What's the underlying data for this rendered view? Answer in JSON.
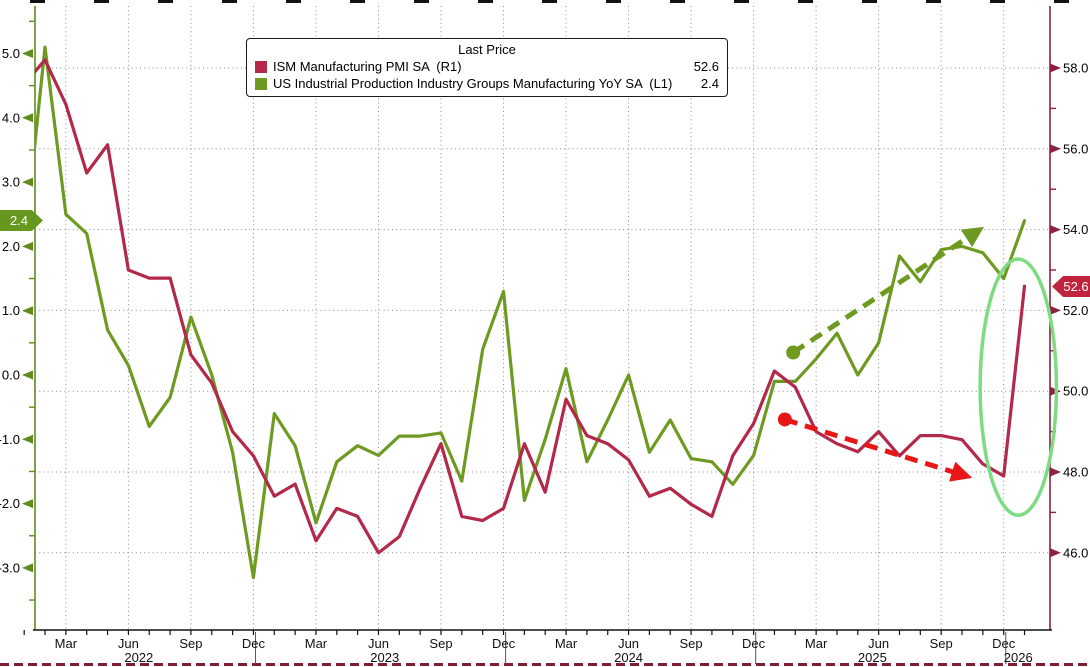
{
  "legend": {
    "title": "Last Price",
    "series": [
      {
        "label": "ISM Manufacturing PMI SA  (R1)",
        "value": "52.6",
        "color": "#b2294a"
      },
      {
        "label": "US Industrial Production Industry Groups Manufacturing YoY SA  (L1)",
        "value": "2.4",
        "color": "#6f9a21"
      }
    ]
  },
  "badges": {
    "left": {
      "text": "2.4",
      "color": "#66981f"
    },
    "right": {
      "text": "52.6",
      "color": "#c0233c"
    }
  },
  "chart_data": {
    "type": "line",
    "x_start": "2022-01",
    "x_end": "2026-01",
    "series": [
      {
        "name": "ISM Manufacturing PMI SA",
        "axis": "right",
        "color": "#b2294a",
        "last_price": 52.6,
        "values": [
          57.6,
          58.2,
          57.1,
          55.4,
          56.1,
          53.0,
          52.8,
          52.8,
          50.9,
          50.2,
          49.0,
          48.4,
          47.4,
          47.7,
          46.3,
          47.1,
          46.9,
          46.0,
          46.4,
          47.6,
          48.7,
          46.9,
          46.8,
          47.1,
          48.7,
          47.5,
          49.8,
          48.9,
          48.7,
          48.3,
          47.4,
          47.6,
          47.2,
          46.9,
          48.4,
          49.2,
          50.5,
          50.1,
          49.0,
          48.7,
          48.5,
          49.0,
          48.4,
          48.9,
          48.9,
          48.8,
          48.2,
          47.9,
          52.6
        ]
      },
      {
        "name": "US Industrial Production Industry Groups Manufacturing YoY SA",
        "axis": "left",
        "color": "#6f9a21",
        "last_price": 2.4,
        "values": [
          2.0,
          5.1,
          2.5,
          2.2,
          0.7,
          0.15,
          -0.8,
          -0.35,
          0.9,
          0.0,
          -1.2,
          -3.15,
          -0.6,
          -1.1,
          -2.3,
          -1.35,
          -1.1,
          -1.25,
          -0.95,
          -0.95,
          -0.9,
          -1.65,
          0.4,
          1.3,
          -1.95,
          -1.0,
          0.1,
          -1.35,
          -0.7,
          0.0,
          -1.2,
          -0.7,
          -1.3,
          -1.35,
          -1.7,
          -1.25,
          -0.1,
          -0.1,
          0.25,
          0.65,
          0.0,
          0.5,
          1.85,
          1.45,
          1.95,
          2.0,
          1.9,
          1.5,
          2.4
        ]
      }
    ],
    "left_axis": {
      "ticks": [
        "5.0",
        "4.0",
        "3.0",
        "2.0",
        "1.0",
        "0.0",
        "-1.0",
        "-2.0",
        "-3.0"
      ],
      "color": "#5f8c1d"
    },
    "right_axis": {
      "ticks": [
        "58.0",
        "56.0",
        "54.0",
        "52.0",
        "50.0",
        "48.0",
        "46.0"
      ],
      "color": "#8e2040"
    },
    "x_axis": {
      "quarter_ticks": [
        {
          "label": "Mar",
          "m": 2
        },
        {
          "label": "Jun",
          "m": 5
        },
        {
          "label": "Sep",
          "m": 8
        },
        {
          "label": "Dec",
          "m": 11
        },
        {
          "label": "Mar",
          "m": 14
        },
        {
          "label": "Jun",
          "m": 17
        },
        {
          "label": "Sep",
          "m": 20
        },
        {
          "label": "Dec",
          "m": 23
        },
        {
          "label": "Mar",
          "m": 26
        },
        {
          "label": "Jun",
          "m": 29
        },
        {
          "label": "Sep",
          "m": 32
        },
        {
          "label": "Dec",
          "m": 35
        },
        {
          "label": "Mar",
          "m": 38
        },
        {
          "label": "Jun",
          "m": 41
        },
        {
          "label": "Sep",
          "m": 44
        },
        {
          "label": "Dec",
          "m": 47
        }
      ],
      "year_labels": [
        {
          "label": "2022",
          "m": 5.5
        },
        {
          "label": "2023",
          "m": 17.3
        },
        {
          "label": "2024",
          "m": 29
        },
        {
          "label": "2025",
          "m": 40.7
        },
        {
          "label": "2026",
          "m": 47.7
        }
      ],
      "year_separators_m": [
        11.1,
        23.1,
        35.1,
        47.1
      ]
    },
    "grid": {
      "on": true,
      "color": "#8a8a8a"
    },
    "annotations": {
      "green_arrow": {
        "axis": "left",
        "from_month": 36.9,
        "from_value": 0.35,
        "to_month": 45.8,
        "to_value": 2.25,
        "color": "#6f9a21"
      },
      "red_arrow": {
        "axis": "right",
        "from_month": 36.5,
        "from_value": 49.3,
        "to_month": 45.2,
        "to_value": 47.9,
        "color": "#e81717"
      },
      "ellipse": {
        "center_month": 47.7,
        "center_right_value": 50.1,
        "radius_months": 1.83,
        "radius_right_units": 3.17,
        "color": "#7ddc82"
      }
    }
  }
}
